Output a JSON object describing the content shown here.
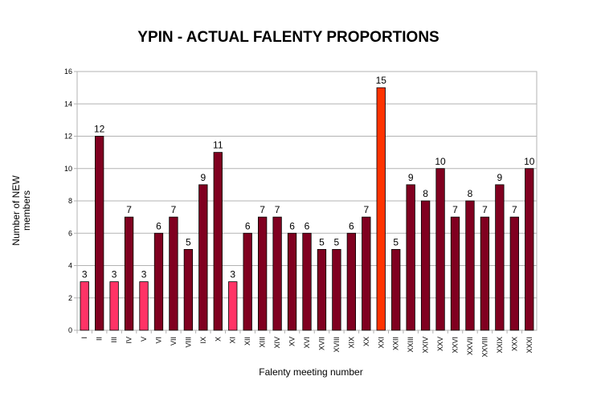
{
  "chart_data": {
    "type": "bar",
    "title": "YPIN - ACTUAL FALENTY PROPORTIONS",
    "xlabel": "Falenty meeting number",
    "ylabel": "Number of NEW\nmembers",
    "ylim": [
      0,
      16
    ],
    "yticks": [
      0,
      2,
      4,
      6,
      8,
      10,
      12,
      14,
      16
    ],
    "grid": true,
    "legend": "none",
    "categories": [
      "I",
      "II",
      "III",
      "IV",
      "V",
      "VI",
      "VII",
      "VIII",
      "IX",
      "X",
      "XI",
      "XII",
      "XIII",
      "XIV",
      "XV",
      "XVI",
      "XVII",
      "XVIII",
      "XIX",
      "XX",
      "XXI",
      "XXII",
      "XXIII",
      "XXIV",
      "XXV",
      "XXVI",
      "XXVII",
      "XXVIII",
      "XXIX",
      "XXX",
      "XXXI"
    ],
    "values": [
      3,
      12,
      3,
      7,
      3,
      6,
      7,
      5,
      9,
      11,
      3,
      6,
      7,
      7,
      6,
      6,
      5,
      5,
      6,
      7,
      15,
      5,
      9,
      8,
      10,
      7,
      8,
      7,
      9,
      7,
      10
    ],
    "colors": [
      "#ff3366",
      "#800020",
      "#ff3366",
      "#800020",
      "#ff3366",
      "#800020",
      "#800020",
      "#800020",
      "#800020",
      "#800020",
      "#ff3366",
      "#800020",
      "#800020",
      "#800020",
      "#800020",
      "#800020",
      "#800020",
      "#800020",
      "#800020",
      "#800020",
      "#ff3300",
      "#800020",
      "#800020",
      "#800020",
      "#800020",
      "#800020",
      "#800020",
      "#800020",
      "#800020",
      "#800020",
      "#800020"
    ]
  }
}
